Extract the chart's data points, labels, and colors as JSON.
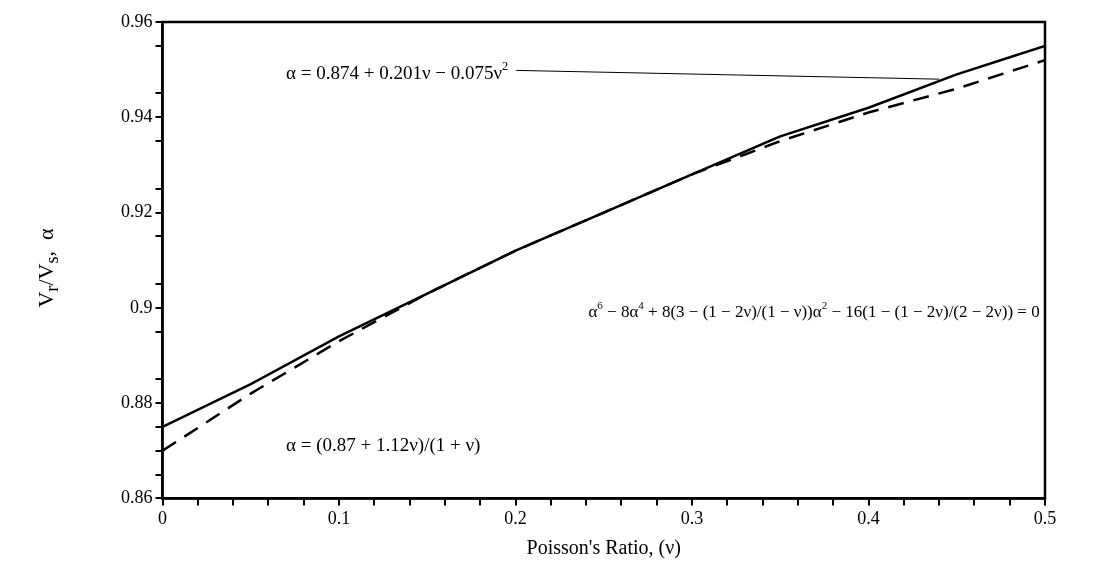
{
  "chart_data": {
    "type": "line",
    "xlabel": "Poisson's Ratio, (ν)",
    "ylabel": "V$_{r}$/V$_{s}$,  α",
    "x": [
      0,
      0.05,
      0.1,
      0.15,
      0.2,
      0.25,
      0.3,
      0.35,
      0.4,
      0.45,
      0.5
    ],
    "series": [
      {
        "color": "#000000",
        "line_style": "solid",
        "values": [
          0.875,
          0.884,
          0.894,
          0.903,
          0.912,
          0.92,
          0.928,
          0.936,
          0.942,
          0.949,
          0.955
        ]
      },
      {
        "color": "#000000",
        "line_style": "dashed",
        "values": [
          0.87,
          0.882,
          0.893,
          0.903,
          0.912,
          0.92,
          0.928,
          0.935,
          0.941,
          0.946,
          0.952
        ]
      }
    ],
    "xlim": [
      0,
      0.5
    ],
    "xticks": [
      0,
      {
        "value": 0.02,
        "label": null
      },
      {
        "value": 0.04,
        "label": null
      },
      {
        "value": 0.06,
        "label": null
      },
      {
        "value": 0.08,
        "label": null
      },
      0.1,
      {
        "value": 0.12,
        "label": null
      },
      {
        "value": 0.14,
        "label": null
      },
      {
        "value": 0.16,
        "label": null
      },
      {
        "value": 0.18,
        "label": null
      },
      0.2,
      {
        "value": 0.22,
        "label": null
      },
      {
        "value": 0.24,
        "label": null
      },
      {
        "value": 0.26,
        "label": null
      },
      {
        "value": 0.28,
        "label": null
      },
      0.3,
      {
        "value": 0.32,
        "label": null
      },
      {
        "value": 0.34,
        "label": null
      },
      {
        "value": 0.36,
        "label": null
      },
      {
        "value": 0.38,
        "label": null
      },
      0.4,
      {
        "value": 0.42,
        "label": null
      },
      {
        "value": 0.44,
        "label": null
      },
      {
        "value": 0.46,
        "label": null
      },
      {
        "value": 0.48,
        "label": null
      },
      0.5
    ],
    "ylim": [
      0.86,
      0.96
    ],
    "yticks": [
      0.86,
      {
        "value": 0.865,
        "label": null
      },
      0.88,
      {
        "value": 0.875,
        "label": null
      },
      {
        "value": 0.885,
        "label": null
      },
      0.9,
      {
        "value": 0.895,
        "label": null
      },
      {
        "value": 0.905,
        "label": null
      },
      0.92,
      {
        "value": 0.915,
        "label": null
      },
      {
        "value": 0.925,
        "label": null
      },
      0.94,
      {
        "value": 0.935,
        "label": null
      },
      {
        "value": 0.945,
        "label": null
      },
      0.96,
      {
        "value": 0.955,
        "label": null
      },
      {
        "value": 0.87,
        "label": null
      }
    ],
    "annotations": [
      {
        "text": "α = 0.874 + 0.201ν − 0.075ν$^{2}$",
        "x": 0.44,
        "y": 0.948
      },
      "α$^{6}$ − 8α$^{4}$ + 8(3 − (1 − 2ν)/(1 − ν))α$^{2}$ − 16(1 − (1 − 2ν)/(2 − 2ν)) = 0",
      "α = (0.87 + 1.12ν)/(1 + ν)"
    ],
    "grid": false,
    "legend": false
  }
}
